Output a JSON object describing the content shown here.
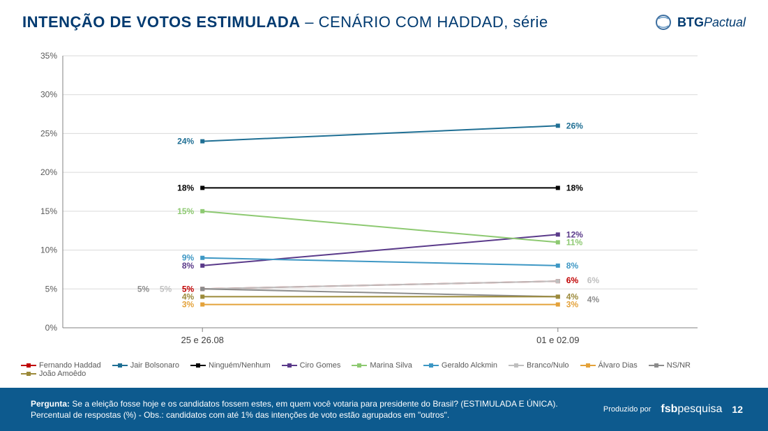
{
  "header": {
    "title_main": "INTENÇÃO DE VOTOS ESTIMULADA",
    "title_sub": " – CENÁRIO COM HADDAD, série",
    "logo_text_bold": "BTG",
    "logo_text_light": "Pactual"
  },
  "chart": {
    "type": "line",
    "background_color": "#ffffff",
    "grid_color": "#d9d9d9",
    "axis_color": "#808080",
    "axis_fontsize": 12,
    "ylim": [
      0,
      35
    ],
    "ytick_step": 5,
    "ytick_labels": [
      "0%",
      "5%",
      "10%",
      "15%",
      "20%",
      "25%",
      "30%",
      "35%"
    ],
    "categories": [
      "25 e 26.08",
      "01 e 02.09"
    ],
    "label_fontsize": 12,
    "label_font_weight": "bold",
    "line_width": 2,
    "marker_size": 6,
    "series": [
      {
        "name": "Fernando Haddad",
        "color": "#c00000",
        "values": [
          5,
          6
        ],
        "left_label": "5%",
        "right_label": "6%",
        "left_dx": 0,
        "right_dx": 0,
        "right_dy": -1,
        "left_show": true,
        "right_show": true
      },
      {
        "name": "Jair Bolsonaro",
        "color": "#1f6f94",
        "values": [
          24,
          26
        ],
        "left_label": "24%",
        "right_label": "26%",
        "left_dx": 0,
        "right_dx": 0,
        "left_show": true,
        "right_show": true
      },
      {
        "name": "Ninguém/Nenhum",
        "color": "#000000",
        "values": [
          18,
          18
        ],
        "left_label": "18%",
        "right_label": "18%",
        "left_dx": 0,
        "right_dx": 0,
        "left_show": true,
        "right_show": true
      },
      {
        "name": "Ciro Gomes",
        "color": "#5a3a8a",
        "values": [
          8,
          12
        ],
        "left_label": "8%",
        "right_label": "12%",
        "left_dx": 0,
        "right_dx": 0,
        "left_show": true,
        "right_show": true
      },
      {
        "name": "Marina Silva",
        "color": "#8dc971",
        "values": [
          15,
          11
        ],
        "left_label": "15%",
        "right_label": "11%",
        "left_dx": 0,
        "right_dx": 0,
        "left_show": true,
        "right_show": true
      },
      {
        "name": "Geraldo Alckmin",
        "color": "#3d97c4",
        "values": [
          9,
          8
        ],
        "left_label": "9%",
        "right_label": "8%",
        "left_dx": 0,
        "right_dx": 0,
        "left_show": true,
        "right_show": true
      },
      {
        "name": "Branco/Nulo",
        "color": "#bfbfbf",
        "values": [
          5,
          6
        ],
        "left_label": "5%",
        "right_label": "6%",
        "left_dx": -32,
        "right_dx": 30,
        "right_dy": -1,
        "left_show": true,
        "right_show": true
      },
      {
        "name": "Álvaro Dias",
        "color": "#e4a23a",
        "values": [
          3,
          3
        ],
        "left_label": "3%",
        "right_label": "3%",
        "left_dx": 0,
        "right_dx": 0,
        "left_show": true,
        "right_show": true
      },
      {
        "name": "NS/NR",
        "color": "#8c8c8c",
        "values": [
          5,
          4
        ],
        "left_label": "5%",
        "right_label": "4%",
        "left_dx": -64,
        "right_dx": 30,
        "right_dy": 4,
        "left_show": true,
        "right_show": true
      },
      {
        "name": "João Amoêdo",
        "color": "#9c8a3a",
        "values": [
          4,
          4
        ],
        "left_label": "4%",
        "right_label": "4%",
        "left_dx": 0,
        "right_dx": 0,
        "left_show": true,
        "right_show": true
      }
    ]
  },
  "footer": {
    "question_label": "Pergunta:",
    "question_text": "  Se a eleição fosse hoje e os candidatos fossem estes, em quem você votaria para presidente do Brasil? (ESTIMULADA E ÚNICA).",
    "note_text": "Percentual de respostas (%) - Obs.: candidatos com até 1% das intenções de voto estão agrupados em \"outros\".",
    "produced_label": "Produzido por",
    "brand_b1": "fsb",
    "brand_b2": "pesquisa",
    "page_number": "12",
    "bg_color": "#0d5a8e"
  }
}
